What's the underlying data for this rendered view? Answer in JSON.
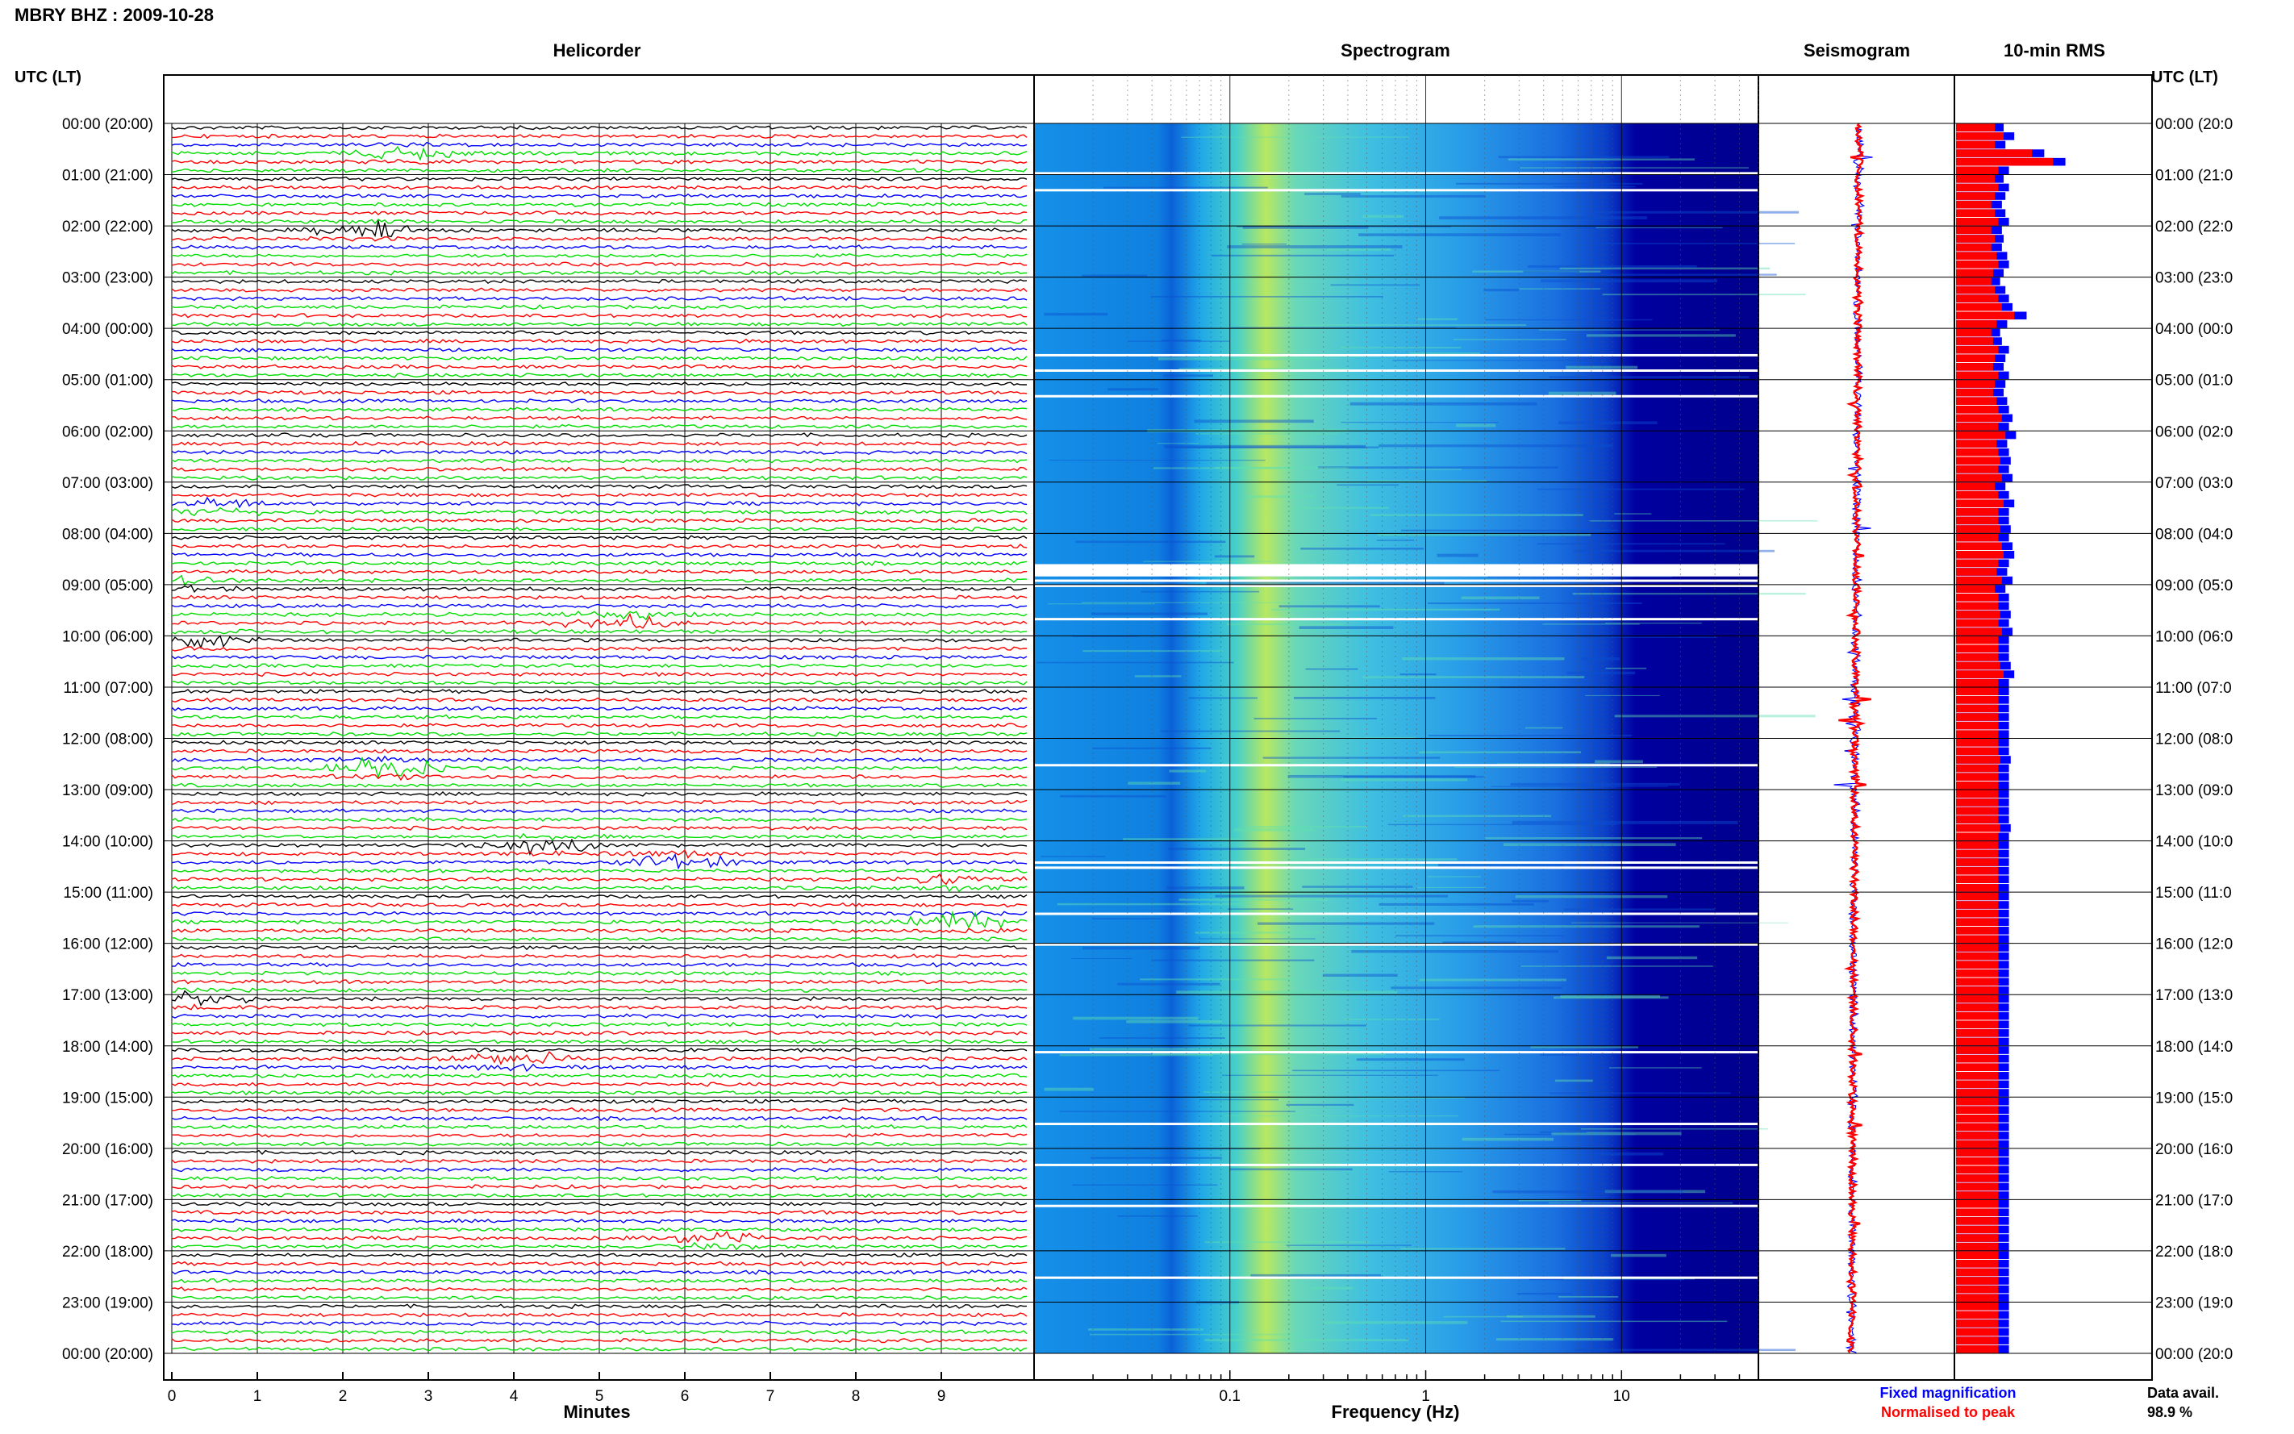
{
  "header": {
    "title": "MBRY BHZ : 2009-10-28"
  },
  "left_axis": {
    "title": "UTC (LT)",
    "hour_labels": [
      "00:00 (20:00)",
      "01:00 (21:00)",
      "02:00 (22:00)",
      "03:00 (23:00)",
      "04:00 (00:00)",
      "05:00 (01:00)",
      "06:00 (02:00)",
      "07:00 (03:00)",
      "08:00 (04:00)",
      "09:00 (05:00)",
      "10:00 (06:00)",
      "11:00 (07:00)",
      "12:00 (08:00)",
      "13:00 (09:00)",
      "14:00 (10:00)",
      "15:00 (11:00)",
      "16:00 (12:00)",
      "17:00 (13:00)",
      "18:00 (14:00)",
      "19:00 (15:00)",
      "20:00 (16:00)",
      "21:00 (17:00)",
      "22:00 (18:00)",
      "23:00 (19:00)",
      "00:00 (20:00)"
    ]
  },
  "right_axis": {
    "title": "UTC (LT)",
    "hour_labels": [
      "00:00 (20:0",
      "01:00 (21:0",
      "02:00 (22:0",
      "03:00 (23:0",
      "04:00 (00:0",
      "05:00 (01:0",
      "06:00 (02:0",
      "07:00 (03:0",
      "08:00 (04:0",
      "09:00 (05:0",
      "10:00 (06:0",
      "11:00 (07:0",
      "12:00 (08:0",
      "13:00 (09:0",
      "14:00 (10:0",
      "15:00 (11:0",
      "16:00 (12:0",
      "17:00 (13:0",
      "18:00 (14:0",
      "19:00 (15:0",
      "20:00 (16:0",
      "21:00 (17:0",
      "22:00 (18:0",
      "23:00 (19:0",
      "00:00 (20:0"
    ]
  },
  "panels": {
    "helicorder": {
      "title": "Helicorder",
      "xlabel": "Minutes",
      "ticks": [
        "0",
        "1",
        "2",
        "3",
        "4",
        "5",
        "6",
        "7",
        "8",
        "9"
      ],
      "trace_colors": [
        "#000000",
        "#ff0000",
        "#0000ff",
        "#00dd00"
      ]
    },
    "spectrogram": {
      "title": "Spectrogram",
      "xlabel": "Frequency (Hz)",
      "ticks": [
        "0.1",
        "1",
        "10"
      ]
    },
    "seismogram": {
      "title": "Seismogram"
    },
    "rms": {
      "title": "10-min RMS"
    }
  },
  "legend": {
    "fixed": {
      "label": "Fixed magnification",
      "color": "#0000ff"
    },
    "normalised": {
      "label": "Normalised to peak",
      "color": "#ff0000"
    }
  },
  "data_availability": {
    "label": "Data avail.",
    "value": "98.9 %"
  },
  "chart_data": {
    "type": "heatmap",
    "title": "MBRY BHZ : 2009-10-28",
    "hours_utc": [
      0,
      1,
      2,
      3,
      4,
      5,
      6,
      7,
      8,
      9,
      10,
      11,
      12,
      13,
      14,
      15,
      16,
      17,
      18,
      19,
      20,
      21,
      22,
      23,
      24
    ],
    "helicorder_xlim_minutes": [
      0,
      10
    ],
    "spectrogram_xlim_hz": [
      0.01,
      50
    ],
    "spectrogram_scale": "log",
    "rms_fixed_relative": [
      0.27,
      0.33,
      0.28,
      0.5,
      0.62,
      0.3,
      0.27,
      0.3,
      0.28,
      0.26,
      0.28,
      0.3,
      0.26,
      0.27,
      0.26,
      0.29,
      0.3,
      0.27,
      0.25,
      0.28,
      0.3,
      0.32,
      0.4,
      0.29,
      0.25,
      0.26,
      0.3,
      0.28,
      0.27,
      0.3,
      0.28,
      0.27,
      0.29,
      0.3,
      0.32,
      0.3,
      0.34,
      0.29,
      0.3,
      0.31,
      0.3,
      0.32,
      0.28,
      0.3,
      0.33,
      0.3,
      0.3,
      0.31,
      0.3,
      0.32,
      0.33,
      0.3,
      0.29,
      0.32,
      0.28,
      0.3,
      0.3,
      0.31,
      0.3,
      0.32,
      0.3,
      0.3,
      0.3,
      0.31,
      0.33,
      0.3,
      0.3,
      0.3,
      0.3,
      0.3,
      0.3,
      0.3,
      0.3,
      0.3,
      0.31,
      0.3,
      0.3,
      0.3,
      0.3,
      0.3,
      0.3,
      0.3,
      0.31,
      0.3,
      0.3,
      0.3,
      0.3,
      0.3,
      0.3,
      0.3,
      0.3,
      0.3,
      0.3,
      0.3,
      0.3,
      0.3,
      0.3,
      0.3,
      0.3,
      0.3,
      0.3,
      0.3,
      0.3,
      0.3,
      0.3,
      0.3,
      0.3,
      0.3,
      0.3,
      0.3,
      0.3,
      0.3,
      0.3,
      0.3,
      0.3,
      0.3,
      0.3,
      0.3,
      0.3,
      0.3,
      0.3,
      0.3,
      0.3,
      0.3,
      0.3,
      0.3,
      0.3,
      0.3,
      0.3,
      0.3,
      0.3,
      0.3,
      0.3,
      0.3,
      0.3,
      0.3,
      0.3,
      0.3,
      0.3,
      0.3,
      0.3,
      0.3,
      0.3,
      0.3
    ],
    "rms_normalised_relative": [
      0.22,
      0.27,
      0.22,
      0.43,
      0.55,
      0.24,
      0.22,
      0.24,
      0.22,
      0.2,
      0.22,
      0.24,
      0.2,
      0.22,
      0.2,
      0.23,
      0.24,
      0.21,
      0.2,
      0.22,
      0.24,
      0.26,
      0.33,
      0.23,
      0.2,
      0.21,
      0.24,
      0.22,
      0.21,
      0.24,
      0.22,
      0.21,
      0.23,
      0.24,
      0.26,
      0.24,
      0.28,
      0.23,
      0.24,
      0.25,
      0.24,
      0.26,
      0.22,
      0.24,
      0.27,
      0.24,
      0.24,
      0.25,
      0.24,
      0.26,
      0.27,
      0.24,
      0.23,
      0.26,
      0.22,
      0.24,
      0.24,
      0.25,
      0.24,
      0.26,
      0.24,
      0.24,
      0.24,
      0.25,
      0.27,
      0.24,
      0.24,
      0.24,
      0.24,
      0.24,
      0.24,
      0.24,
      0.24,
      0.24,
      0.25,
      0.24,
      0.24,
      0.24,
      0.24,
      0.24,
      0.24,
      0.24,
      0.25,
      0.24,
      0.24,
      0.24,
      0.24,
      0.24,
      0.24,
      0.24,
      0.24,
      0.24,
      0.24,
      0.24,
      0.24,
      0.24,
      0.24,
      0.24,
      0.24,
      0.24,
      0.24,
      0.24,
      0.24,
      0.24,
      0.24,
      0.24,
      0.24,
      0.24,
      0.24,
      0.24,
      0.24,
      0.24,
      0.24,
      0.24,
      0.24,
      0.24,
      0.24,
      0.24,
      0.24,
      0.24,
      0.24,
      0.24,
      0.24,
      0.24,
      0.24,
      0.24,
      0.24,
      0.24,
      0.24,
      0.24,
      0.24,
      0.24,
      0.24,
      0.24,
      0.24,
      0.24,
      0.24,
      0.24,
      0.24,
      0.24,
      0.24,
      0.24,
      0.24,
      0.24
    ],
    "events": [
      {
        "hour": 0.5,
        "minute": 2.7,
        "amplitude": 0.6
      },
      {
        "hour": 2.0,
        "minute": 2.3,
        "amplitude": 0.7
      },
      {
        "hour": 7.4,
        "minute": 0.4,
        "amplitude": 0.8
      },
      {
        "hour": 8.9,
        "minute": 0.2,
        "amplitude": 0.5
      },
      {
        "hour": 9.6,
        "minute": 5.2,
        "amplitude": 1.0
      },
      {
        "hour": 10.0,
        "minute": 0.3,
        "amplitude": 0.7
      },
      {
        "hour": 12.5,
        "minute": 2.5,
        "amplitude": 0.9
      },
      {
        "hour": 14.0,
        "minute": 4.3,
        "amplitude": 0.8
      },
      {
        "hour": 14.3,
        "minute": 6.0,
        "amplitude": 0.9
      },
      {
        "hour": 14.7,
        "minute": 9.3,
        "amplitude": 0.7
      },
      {
        "hour": 15.5,
        "minute": 9.2,
        "amplitude": 0.8
      },
      {
        "hour": 17.0,
        "minute": 0.3,
        "amplitude": 0.6
      },
      {
        "hour": 18.2,
        "minute": 4.0,
        "amplitude": 0.9
      },
      {
        "hour": 21.7,
        "minute": 6.3,
        "amplitude": 0.7
      }
    ]
  }
}
